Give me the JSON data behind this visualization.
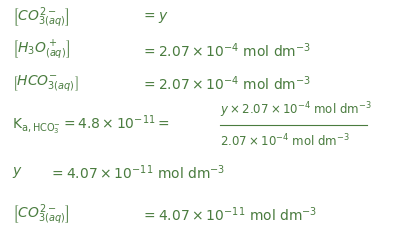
{
  "bg_color": "#ffffff",
  "text_color": "#4a7c3f",
  "fig_width": 3.97,
  "fig_height": 2.37,
  "dpi": 100
}
